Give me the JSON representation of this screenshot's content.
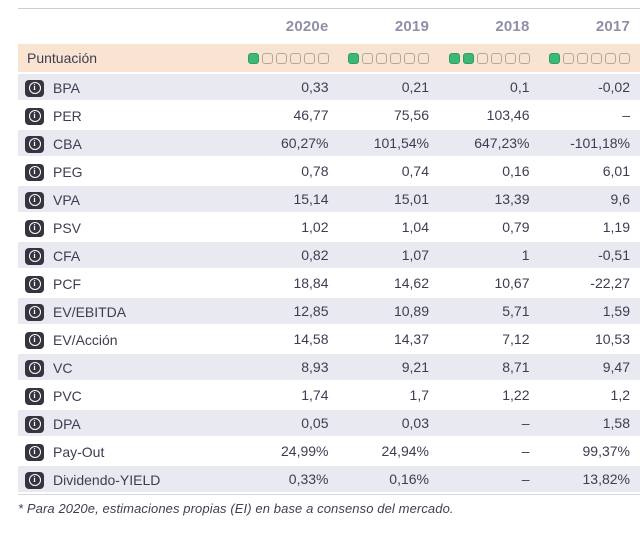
{
  "table": {
    "columns": [
      "2020e",
      "2019",
      "2018",
      "2017"
    ],
    "score_row": {
      "label": "Puntuación",
      "max_squares": 6,
      "scores": [
        1,
        1,
        2,
        1
      ]
    },
    "rows": [
      {
        "label": "BPA",
        "values": [
          "0,33",
          "0,21",
          "0,1",
          "-0,02"
        ]
      },
      {
        "label": "PER",
        "values": [
          "46,77",
          "75,56",
          "103,46",
          "–"
        ]
      },
      {
        "label": "CBA",
        "values": [
          "60,27%",
          "101,54%",
          "647,23%",
          "-101,18%"
        ]
      },
      {
        "label": "PEG",
        "values": [
          "0,78",
          "0,74",
          "0,16",
          "6,01"
        ]
      },
      {
        "label": "VPA",
        "values": [
          "15,14",
          "15,01",
          "13,39",
          "9,6"
        ]
      },
      {
        "label": "PSV",
        "values": [
          "1,02",
          "1,04",
          "0,79",
          "1,19"
        ]
      },
      {
        "label": "CFA",
        "values": [
          "0,82",
          "1,07",
          "1",
          "-0,51"
        ]
      },
      {
        "label": "PCF",
        "values": [
          "18,84",
          "14,62",
          "10,67",
          "-22,27"
        ]
      },
      {
        "label": "EV/EBITDA",
        "values": [
          "12,85",
          "10,89",
          "5,71",
          "1,59"
        ]
      },
      {
        "label": "EV/Acción",
        "values": [
          "14,58",
          "14,37",
          "7,12",
          "10,53"
        ]
      },
      {
        "label": "VC",
        "values": [
          "8,93",
          "9,21",
          "8,71",
          "9,47"
        ]
      },
      {
        "label": "PVC",
        "values": [
          "1,74",
          "1,7",
          "1,22",
          "1,2"
        ]
      },
      {
        "label": "DPA",
        "values": [
          "0,05",
          "0,03",
          "–",
          "1,58"
        ]
      },
      {
        "label": "Pay-Out",
        "values": [
          "24,99%",
          "24,94%",
          "–",
          "99,37%"
        ]
      },
      {
        "label": "Dividendo-YIELD",
        "values": [
          "0,33%",
          "0,16%",
          "–",
          "13,82%"
        ]
      }
    ]
  },
  "icons": {
    "info": "info-icon",
    "info_glyph": "i"
  },
  "footnote": "* Para 2020e, estimaciones propias (EI) en base a consenso del mercado.",
  "colors": {
    "accent_green": "#3cb874",
    "accent_green_border": "#2f9e60",
    "score_row_bg": "#f9e4d2",
    "shaded_row_bg": "#e9e9f1",
    "header_text": "#8f8fa8",
    "body_text": "#3d3d52",
    "empty_square_border": "#b5a79e",
    "info_badge_bg": "#35343f",
    "table_border": "#cdcdda"
  }
}
